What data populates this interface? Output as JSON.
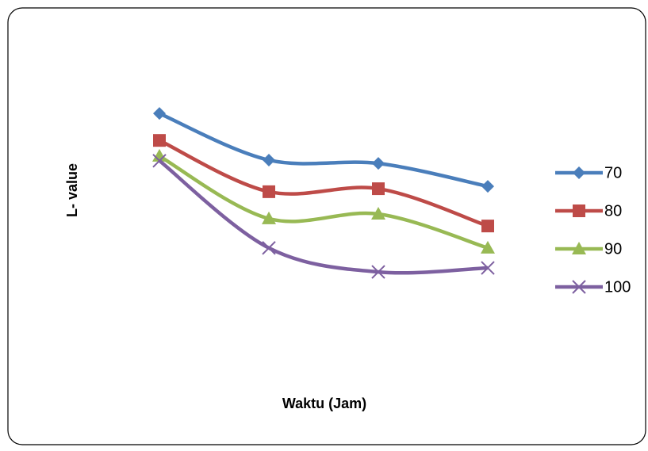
{
  "chart_data": {
    "type": "line",
    "xlabel": "Waktu (Jam)",
    "ylabel": "L- value",
    "categories": [
      null,
      null,
      null,
      null
    ],
    "ylim": [
      0,
      100
    ],
    "series": [
      {
        "name": "70",
        "color": "#4a7ebb",
        "marker": "diamond",
        "values": [
          80.2,
          66.2,
          65.2,
          58.3
        ]
      },
      {
        "name": "80",
        "color": "#be4b48",
        "marker": "square",
        "values": [
          72.1,
          56.7,
          57.6,
          46.4
        ]
      },
      {
        "name": "90",
        "color": "#98b954",
        "marker": "triangle",
        "values": [
          67.4,
          48.6,
          50.0,
          39.8
        ]
      },
      {
        "name": "100",
        "color": "#7d60a0",
        "marker": "x",
        "values": [
          66.0,
          39.8,
          32.6,
          33.8
        ]
      }
    ],
    "legend": "right"
  }
}
